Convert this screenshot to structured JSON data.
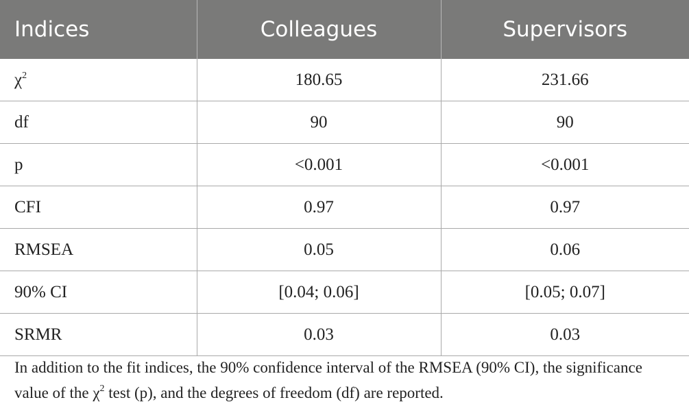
{
  "table": {
    "headers": [
      "Indices",
      "Colleagues",
      "Supervisors"
    ],
    "rows": [
      {
        "label": "χ",
        "label_sup": "2",
        "colleagues": "180.65",
        "supervisors": "231.66"
      },
      {
        "label": "df",
        "colleagues": "90",
        "supervisors": "90"
      },
      {
        "label": "p",
        "colleagues": "<0.001",
        "supervisors": "<0.001"
      },
      {
        "label": "CFI",
        "colleagues": "0.97",
        "supervisors": "0.97"
      },
      {
        "label": "RMSEA",
        "colleagues": "0.05",
        "supervisors": "0.06"
      },
      {
        "label": "90% CI",
        "colleagues": "[0.04; 0.06]",
        "supervisors": "[0.05; 0.07]"
      },
      {
        "label": "SRMR",
        "colleagues": "0.03",
        "supervisors": "0.03"
      }
    ]
  },
  "note": {
    "text_before": "In addition to the fit indices, the 90% confidence interval of the RMSEA (90% CI), the significance value of the χ",
    "sup": "2",
    "text_after": " test (p), and the degrees of freedom (df) are reported."
  }
}
